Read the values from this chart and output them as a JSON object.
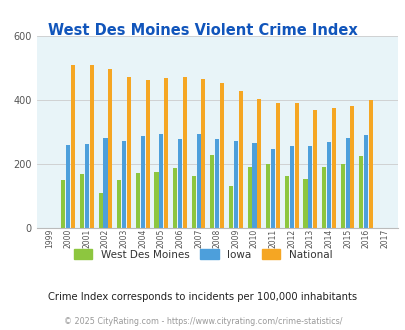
{
  "title": "West Des Moines Violent Crime Index",
  "years": [
    1999,
    2000,
    2001,
    2002,
    2003,
    2004,
    2005,
    2006,
    2007,
    2008,
    2009,
    2010,
    2011,
    2012,
    2013,
    2014,
    2015,
    2016,
    2017
  ],
  "wdm": [
    0,
    150,
    168,
    110,
    148,
    172,
    174,
    188,
    163,
    228,
    130,
    190,
    201,
    163,
    153,
    190,
    200,
    225,
    0
  ],
  "iowa": [
    0,
    260,
    263,
    281,
    272,
    287,
    295,
    278,
    295,
    278,
    272,
    267,
    247,
    255,
    257,
    268,
    282,
    290,
    0
  ],
  "national": [
    0,
    510,
    510,
    497,
    472,
    462,
    469,
    473,
    466,
    455,
    428,
    405,
    390,
    390,
    369,
    375,
    383,
    400,
    0
  ],
  "bar_colors": {
    "wdm": "#8dc63f",
    "iowa": "#4d9fdb",
    "national": "#f5a623"
  },
  "legend_labels": [
    "West Des Moines",
    "Iowa",
    "National"
  ],
  "subtitle": "Crime Index corresponds to incidents per 100,000 inhabitants",
  "footer": "© 2025 CityRating.com - https://www.cityrating.com/crime-statistics/",
  "ylim": [
    0,
    600
  ],
  "yticks": [
    0,
    200,
    400,
    600
  ],
  "bg_color": "#e8f4f8",
  "title_color": "#1155bb",
  "subtitle_color": "#222222",
  "footer_color": "#999999"
}
